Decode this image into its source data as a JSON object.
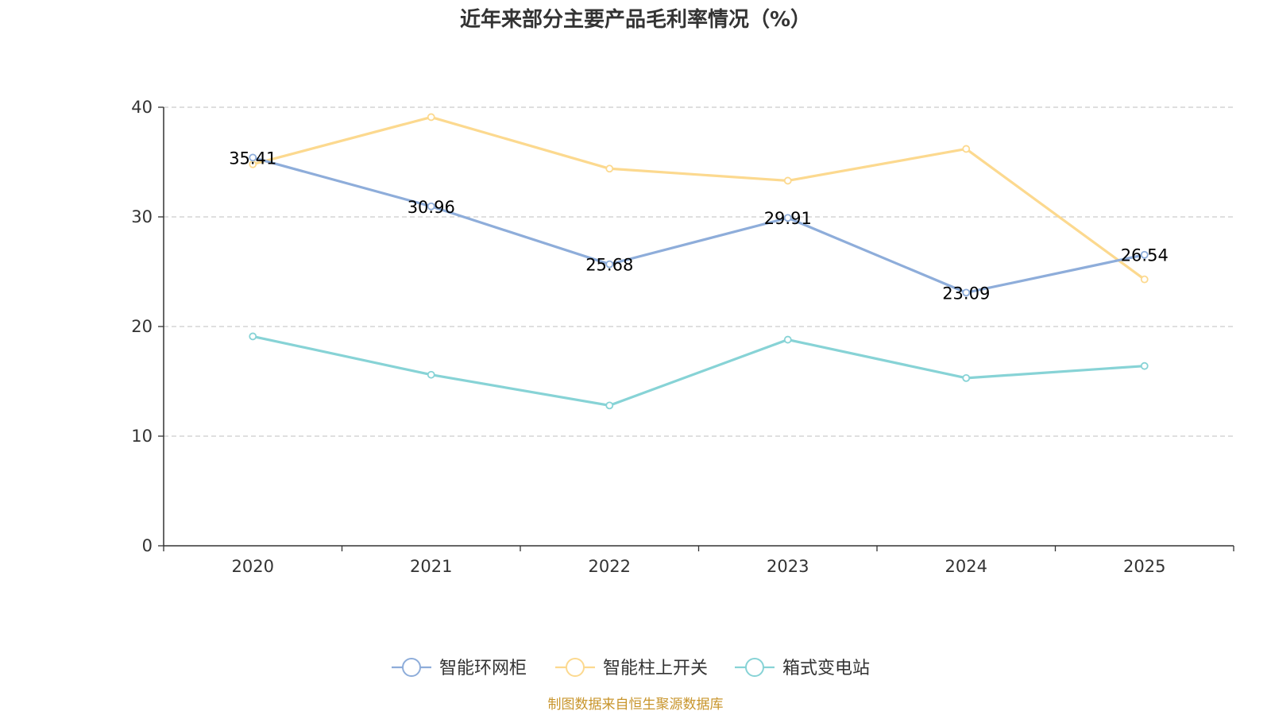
{
  "colors": {
    "background": "#ffffff",
    "text": "#333333",
    "axis": "#333333",
    "grid": "#cccccc",
    "label": "#000000",
    "source": "#c8952c"
  },
  "source_note": "制图数据来自恒生聚源数据库",
  "chart_data": {
    "type": "line",
    "title": "近年来部分主要产品毛利率情况（%）",
    "xlabel": "",
    "ylabel": "",
    "categories": [
      "2020",
      "2021",
      "2022",
      "2023",
      "2024",
      "2025"
    ],
    "ylim": [
      0,
      40
    ],
    "yticks": [
      0,
      10,
      20,
      30,
      40
    ],
    "grid": true,
    "legend_position": "bottom",
    "series": [
      {
        "name": "智能环网柜",
        "color": "#8eadda",
        "values": [
          35.41,
          30.96,
          25.68,
          29.91,
          23.09,
          26.54
        ],
        "labels": [
          "35.41",
          "30.96",
          "25.68",
          "29.91",
          "23.09",
          "26.54"
        ],
        "show_labels": true
      },
      {
        "name": "智能柱上开关",
        "color": "#fcd98f",
        "values": [
          34.8,
          39.1,
          34.4,
          33.3,
          36.2,
          24.3
        ],
        "show_labels": false
      },
      {
        "name": "箱式变电站",
        "color": "#87d3d6",
        "values": [
          19.1,
          15.6,
          12.8,
          18.8,
          15.3,
          16.4
        ],
        "show_labels": false
      }
    ]
  }
}
